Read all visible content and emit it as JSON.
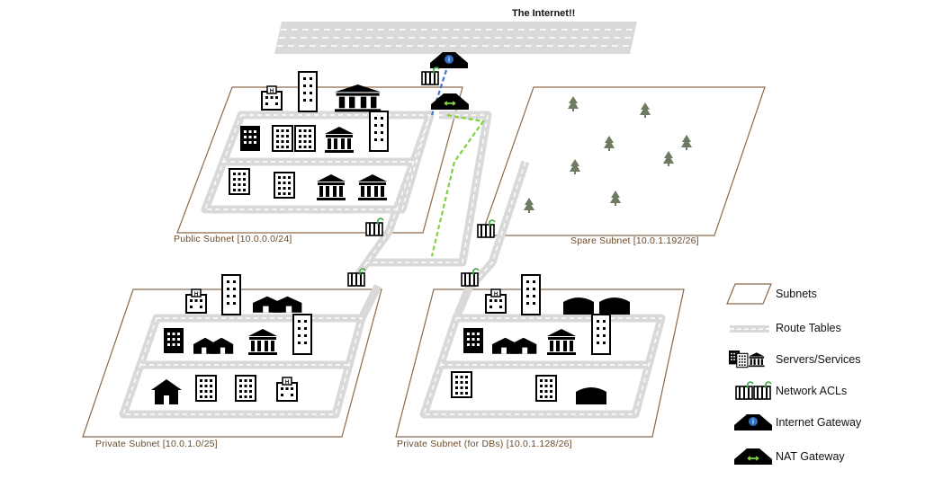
{
  "diagram": {
    "internet_label": "The Internet!!",
    "subnets": {
      "public": "Public Subnet [10.0.0.0/24]",
      "spare": "Spare Subnet [10.0.1.192/26]",
      "private": "Private Subnet [10.0.1.0/25]",
      "private_db": "Private Subnet (for DBs) [10.0.1.128/26]"
    }
  },
  "legend": {
    "items": [
      {
        "label": "Subnets",
        "icon": "subnet-swatch-icon"
      },
      {
        "label": "Route Tables",
        "icon": "route-table-road-icon"
      },
      {
        "label": "Servers/Services",
        "icon": "buildings-icon"
      },
      {
        "label": "Network ACLs",
        "icon": "acl-gate-icon"
      },
      {
        "label": "Internet Gateway",
        "icon": "internet-gateway-icon"
      },
      {
        "label": "NAT Gateway",
        "icon": "nat-gateway-icon"
      }
    ]
  },
  "colors": {
    "subnet_border": "#8a6a4a",
    "road": "#d9d9d9",
    "road_dash": "#ffffff",
    "igw_path": "#3a78c9",
    "nat_path": "#7fd13b",
    "tree": "#6e7a62",
    "acl_lock": "#3fa83f",
    "label": "#6b4a2b"
  }
}
